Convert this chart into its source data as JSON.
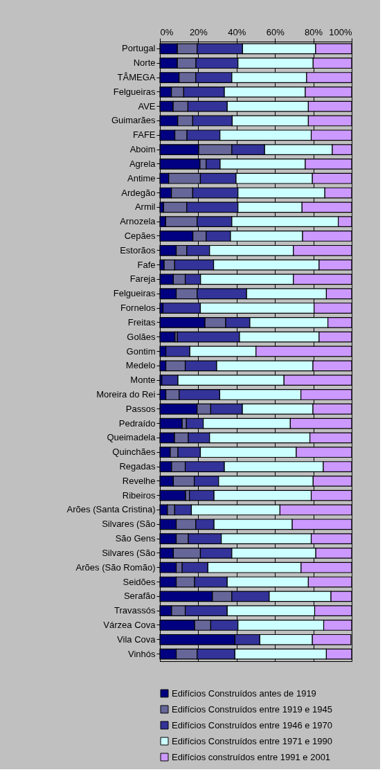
{
  "chart_data": {
    "type": "bar",
    "orientation": "horizontal",
    "stacked": true,
    "categories": [
      "Portugal",
      "Norte",
      "TÂMEGA",
      "Felgueiras",
      "AVE",
      "Guimarães",
      "FAFE",
      "Aboim",
      "Agrela",
      "Antime",
      "Ardegão",
      "Armil",
      "Arnozela",
      "Cepães",
      "Estorãos",
      "Fafe",
      "Fareja",
      "Felgueiras",
      "Fornelos",
      "Freitas",
      "Golães",
      "Gontim",
      "Medelo",
      "Monte",
      "Moreira do Rei",
      "Passos",
      "Pedraído",
      "Queimadela",
      "Quinchães",
      "Regadas",
      "Revelhe",
      "Ribeiros",
      "Arões (Santa Cristina)",
      "Silvares (São",
      "São Gens",
      "Silvares (São",
      "Arões (São Romão)",
      "Seidões",
      "Serafão",
      "Travassós",
      "Várzea Cova",
      "Vila Cova",
      "Vinhós"
    ],
    "series": [
      {
        "name": "Edifícios Construídos antes de 1919",
        "color": "#000080",
        "values": [
          9.1,
          9.1,
          10.0,
          6.0,
          6.9,
          9.3,
          7.8,
          20.2,
          20.9,
          4.6,
          6.0,
          1.9,
          3.0,
          17.2,
          8.5,
          2.2,
          7.0,
          8.5,
          1.6,
          23.5,
          7.9,
          3.1,
          3.1,
          1.0,
          3.1,
          19.4,
          11.6,
          7.6,
          5.4,
          6.1,
          7.0,
          13.4,
          3.9,
          8.5,
          8.5,
          7.0,
          8.5,
          8.5,
          27.4,
          6.1,
          18.1,
          39.1,
          8.5
        ]
      },
      {
        "name": "Edifícios Construídos entre 1919 e 1945",
        "color": "#666699",
        "values": [
          10.3,
          9.7,
          8.7,
          6.4,
          7.7,
          7.8,
          6.3,
          17.3,
          3.2,
          16.5,
          11.1,
          12.1,
          16.4,
          6.9,
          5.5,
          5.5,
          6.2,
          10.9,
          0,
          10.8,
          1.2,
          0,
          10.1,
          0,
          6.9,
          7.1,
          2.2,
          7.2,
          4.0,
          7.1,
          10.9,
          2.0,
          3.8,
          10.2,
          6.3,
          14.1,
          3.1,
          9.6,
          10.1,
          7.1,
          8.4,
          null,
          10.9
        ]
      },
      {
        "name": "Edifícios Construídos entre 1946 e 1970",
        "color": "#333399",
        "values": [
          23.7,
          21.9,
          18.8,
          21.2,
          20.5,
          20.6,
          17.2,
          17.1,
          7.3,
          18.6,
          23.6,
          26.7,
          18.1,
          12.7,
          11.9,
          20.3,
          8.0,
          25.8,
          19.5,
          12.6,
          32.4,
          12.5,
          16.4,
          8.4,
          21.2,
          16.5,
          8.8,
          11.1,
          11.7,
          20.4,
          12.7,
          12.8,
          8.7,
          9.5,
          17.2,
          16.4,
          13.4,
          17.0,
          19.5,
          21.9,
          14.2,
          13.0,
          19.7
        ]
      },
      {
        "name": "Edifícios Construídos entre 1971 e 1990",
        "color": "#ccffff",
        "values": [
          38.1,
          39.2,
          39.0,
          42.2,
          42.3,
          39.7,
          47.6,
          35.3,
          44.4,
          39.8,
          45.3,
          33.4,
          55.5,
          37.6,
          43.7,
          55.0,
          48.4,
          41.6,
          59.3,
          40.7,
          41.5,
          34.5,
          50.2,
          55.3,
          42.3,
          36.8,
          45.4,
          52.3,
          50.0,
          51.6,
          49.3,
          50.7,
          46.2,
          40.8,
          46.9,
          43.8,
          48.6,
          42.3,
          32.2,
          45.6,
          44.7,
          27.4,
          47.7
        ]
      },
      {
        "name": "Edifícios construídos entre 1991 e 2001",
        "color": "#cc99ff",
        "values": [
          18.8,
          20.1,
          23.5,
          24.2,
          22.6,
          22.6,
          21.1,
          10.1,
          24.2,
          20.5,
          14.0,
          25.9,
          7.0,
          25.6,
          30.4,
          17.0,
          30.4,
          13.2,
          19.6,
          12.4,
          17.0,
          49.9,
          20.2,
          35.3,
          26.5,
          20.2,
          32.0,
          21.8,
          28.9,
          14.8,
          20.1,
          21.1,
          37.4,
          31.0,
          21.1,
          18.7,
          26.4,
          22.6,
          10.8,
          19.3,
          14.6,
          20.1,
          13.2
        ]
      }
    ],
    "xlim": [
      0,
      100
    ],
    "xticks": [
      {
        "value": 0,
        "label": "0%"
      },
      {
        "value": 20,
        "label": "20%"
      },
      {
        "value": 40,
        "label": "40%"
      },
      {
        "value": 60,
        "label": "60%"
      },
      {
        "value": 80,
        "label": "80%"
      },
      {
        "value": 100,
        "label": "100%"
      }
    ],
    "grid": "x",
    "legend": "bottom"
  }
}
